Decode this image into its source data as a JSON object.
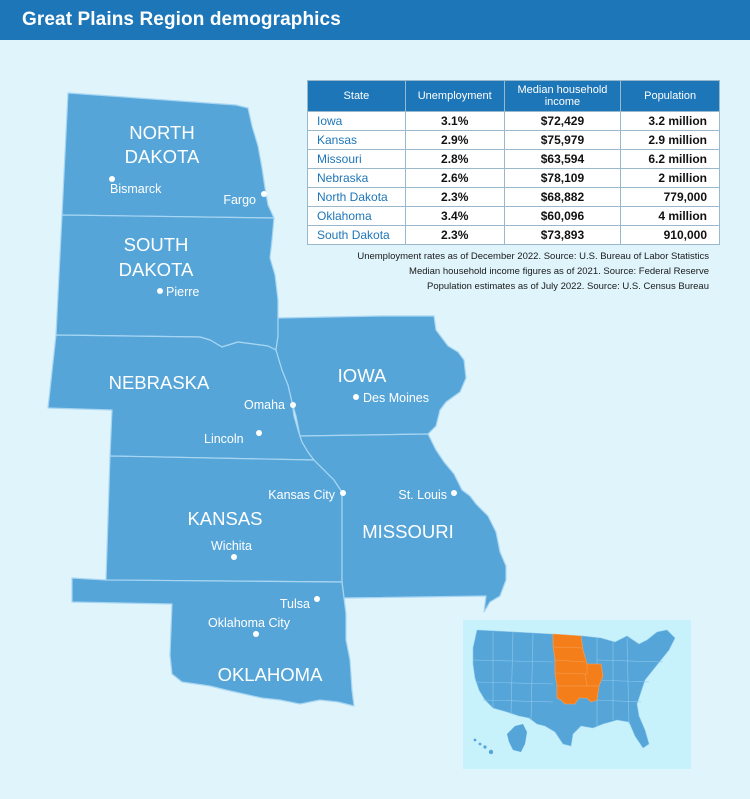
{
  "title": "Great Plains Region demographics",
  "table": {
    "headers": [
      "State",
      "Unemployment",
      "Median household income",
      "Population"
    ],
    "rows": [
      {
        "state": "Iowa",
        "unemployment": "3.1%",
        "income": "$72,429",
        "population": "3.2 million"
      },
      {
        "state": "Kansas",
        "unemployment": "2.9%",
        "income": "$75,979",
        "population": "2.9 million"
      },
      {
        "state": "Missouri",
        "unemployment": "2.8%",
        "income": "$63,594",
        "population": "6.2 million"
      },
      {
        "state": "Nebraska",
        "unemployment": "2.6%",
        "income": "$78,109",
        "population": "2 million"
      },
      {
        "state": "North Dakota",
        "unemployment": "2.3%",
        "income": "$68,882",
        "population": "779,000"
      },
      {
        "state": "Oklahoma",
        "unemployment": "3.4%",
        "income": "$60,096",
        "population": "4 million"
      },
      {
        "state": "South Dakota",
        "unemployment": "2.3%",
        "income": "$73,893",
        "population": "910,000"
      }
    ]
  },
  "notes": [
    "Unemployment rates as of December 2022. Source: U.S. Bureau of Labor Statistics",
    "Median household income figures as of 2021. Source: Federal Reserve",
    "Population estimates as of July 2022. Source: U.S. Census Bureau"
  ],
  "map": {
    "states": {
      "north_dakota": [
        "NORTH",
        "DAKOTA"
      ],
      "south_dakota": [
        "SOUTH",
        "DAKOTA"
      ],
      "nebraska": "NEBRASKA",
      "iowa": "IOWA",
      "kansas": "KANSAS",
      "missouri": "MISSOURI",
      "oklahoma": "OKLAHOMA"
    },
    "cities": {
      "bismarck": "Bismarck",
      "fargo": "Fargo",
      "pierre": "Pierre",
      "omaha": "Omaha",
      "des_moines": "Des Moines",
      "lincoln": "Lincoln",
      "kansas_city": "Kansas City",
      "st_louis": "St. Louis",
      "wichita": "Wichita",
      "tulsa": "Tulsa",
      "oklahoma_city": "Oklahoma City"
    }
  },
  "colors": {
    "header": "#1d76b8",
    "background": "#dff4fb",
    "state_fill": "#56a5d9",
    "state_border": "#9fd0ee",
    "highlight": "#f47f1a",
    "inset_background": "#c7f1fb"
  }
}
